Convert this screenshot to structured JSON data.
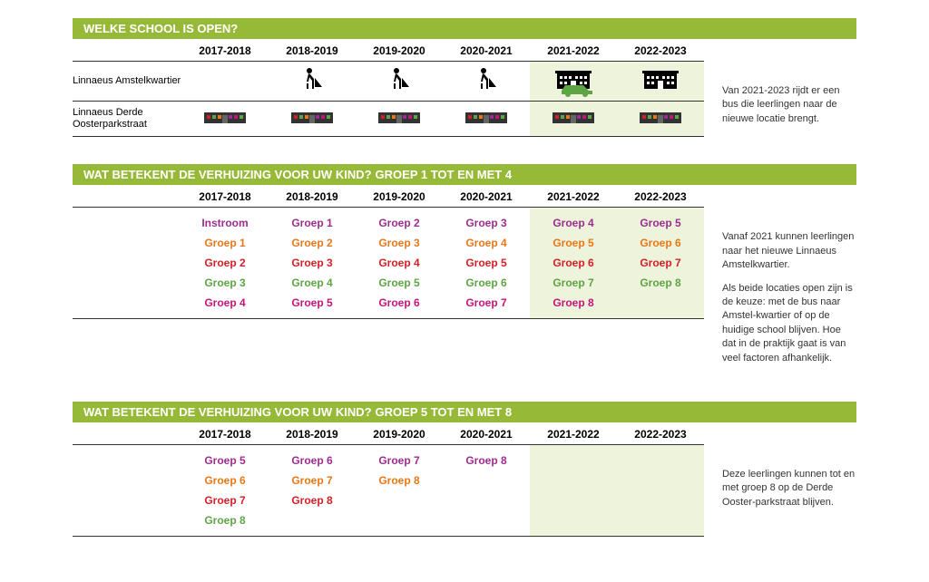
{
  "years": [
    "2017-2018",
    "2018-2019",
    "2019-2020",
    "2020-2021",
    "2021-2022",
    "2022-2023"
  ],
  "colors": {
    "header_bg": "#97b938",
    "highlight_bg": "#eef3dc",
    "purple": "#9b2d8f",
    "orange": "#e67817",
    "red": "#d32027",
    "green": "#5ea544",
    "magenta": "#c4157c",
    "car_green": "#5ea544"
  },
  "section1": {
    "title": "WELKE SCHOOL IS OPEN?",
    "rows": [
      {
        "label": "Linnaeus Amstelkwartier",
        "icons": [
          "",
          "construction",
          "construction",
          "construction",
          "building",
          "building"
        ]
      },
      {
        "label": "Linnaeus Derde Oosterparkstraat",
        "icons": [
          "school",
          "school",
          "school",
          "school",
          "school",
          "school"
        ]
      }
    ],
    "side_text": "Van 2021-2023 rijdt er een bus die leerlingen naar de nieuwe locatie brengt.",
    "highlight_cols": [
      4,
      5
    ]
  },
  "section2": {
    "title": "WAT BETEKENT DE VERHUIZING VOOR UW KIND?",
    "subtitle": "GROEP 1 TOT EN MET 4",
    "rows": [
      {
        "color": "purple",
        "cells": [
          "Instroom",
          "Groep 1",
          "Groep 2",
          "Groep 3",
          "Groep 4",
          "Groep 5"
        ]
      },
      {
        "color": "orange",
        "cells": [
          "Groep 1",
          "Groep 2",
          "Groep 3",
          "Groep 4",
          "Groep 5",
          "Groep 6"
        ]
      },
      {
        "color": "red",
        "cells": [
          "Groep 2",
          "Groep 3",
          "Groep 4",
          "Groep 5",
          "Groep 6",
          "Groep 7"
        ]
      },
      {
        "color": "green",
        "cells": [
          "Groep 3",
          "Groep 4",
          "Groep 5",
          "Groep 6",
          "Groep 7",
          "Groep 8"
        ]
      },
      {
        "color": "magenta",
        "cells": [
          "Groep 4",
          "Groep 5",
          "Groep 6",
          "Groep 7",
          "Groep 8",
          ""
        ]
      }
    ],
    "side_text": [
      "Vanaf 2021 kunnen leerlingen naar het nieuwe Linnaeus Amstelkwartier.",
      "Als beide locaties open zijn is de keuze: met de bus naar Amstel-kwartier of op de huidige school blijven. Hoe dat in de praktijk gaat is van veel factoren afhankelijk."
    ],
    "highlight_cols": [
      4,
      5
    ]
  },
  "section3": {
    "title": "WAT BETEKENT DE VERHUIZING VOOR UW KIND?",
    "subtitle": "GROEP 5 TOT EN MET 8",
    "rows": [
      {
        "color": "purple",
        "cells": [
          "Groep 5",
          "Groep 6",
          "Groep 7",
          "Groep 8",
          "",
          ""
        ]
      },
      {
        "color": "orange",
        "cells": [
          "Groep 6",
          "Groep 7",
          "Groep 8",
          "",
          "",
          ""
        ]
      },
      {
        "color": "red",
        "cells": [
          "Groep 7",
          "Groep 8",
          "",
          "",
          "",
          ""
        ]
      },
      {
        "color": "green",
        "cells": [
          "Groep 8",
          "",
          "",
          "",
          "",
          ""
        ]
      }
    ],
    "side_text": [
      "Deze leerlingen kunnen tot en met groep 8 op de Derde Ooster-parkstraat blijven."
    ],
    "highlight_cols": [
      4,
      5
    ]
  }
}
